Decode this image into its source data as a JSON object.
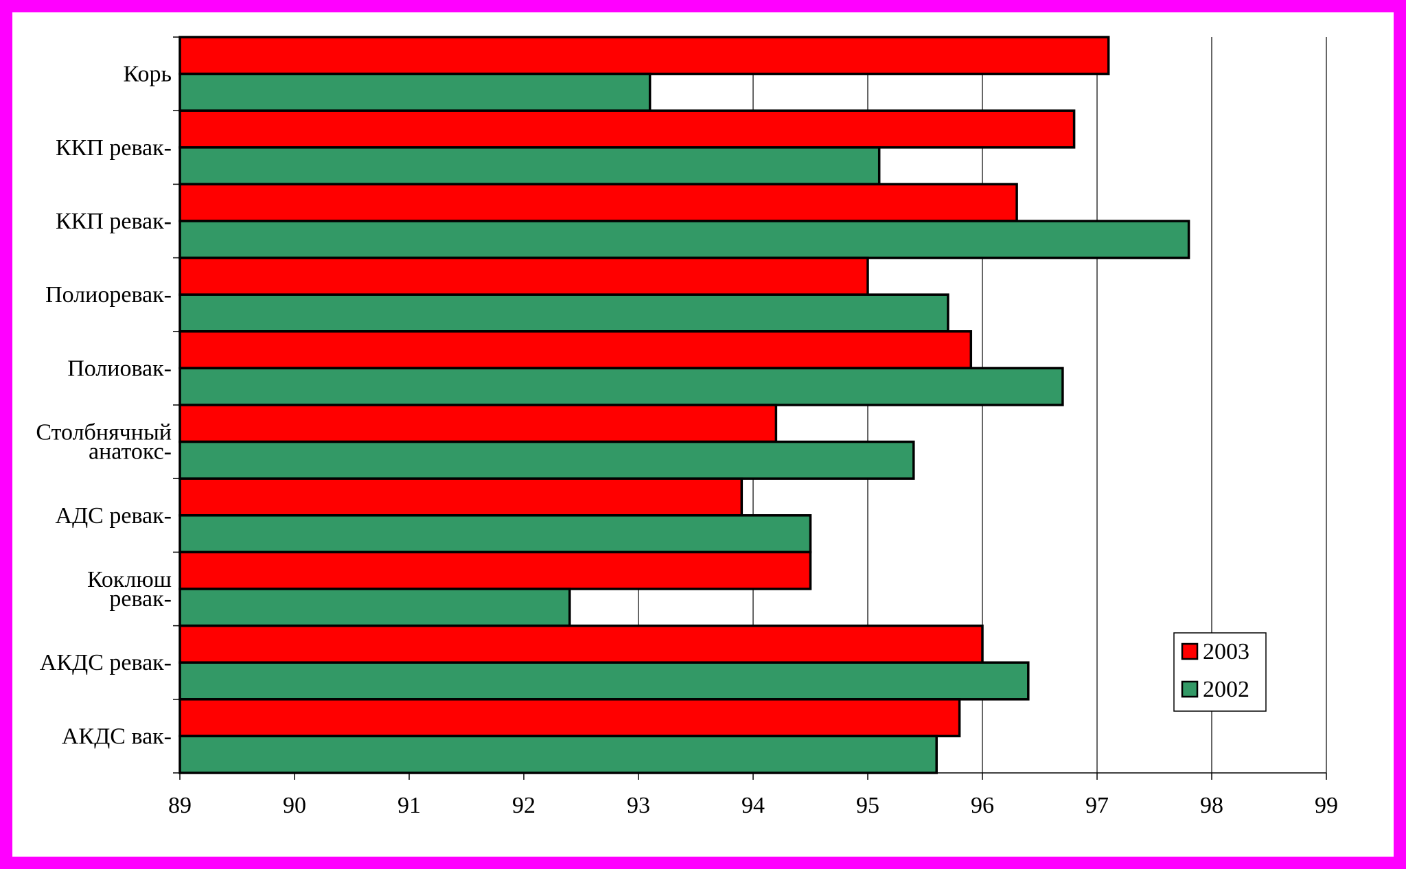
{
  "chart_data": {
    "type": "bar",
    "orientation": "horizontal",
    "title": "",
    "xlabel": "",
    "ylabel": "",
    "xlim": [
      89,
      99
    ],
    "xticks": [
      89,
      90,
      91,
      92,
      93,
      94,
      95,
      96,
      97,
      98,
      99
    ],
    "grid": "vertical",
    "legend_position": "bottom-right",
    "categories": [
      [
        "Корь"
      ],
      [
        "ККП ревак-"
      ],
      [
        "ККП ревак-"
      ],
      [
        "Полиоревак-"
      ],
      [
        "Полиовак-"
      ],
      [
        "Столбнячный",
        "анатокс-"
      ],
      [
        "АДС ревак-"
      ],
      [
        "Коклюш",
        "ревак-"
      ],
      [
        "АКДС ревак-"
      ],
      [
        "АКДС вак-"
      ]
    ],
    "series": [
      {
        "name": "2003",
        "color": "#ff0000",
        "values": [
          97.1,
          96.8,
          96.3,
          95.0,
          95.9,
          94.2,
          93.9,
          94.5,
          96.0,
          95.8
        ]
      },
      {
        "name": "2002",
        "color": "#339966",
        "values": [
          93.1,
          95.1,
          97.8,
          95.7,
          96.7,
          95.4,
          94.5,
          92.4,
          96.4,
          95.6
        ]
      }
    ]
  }
}
